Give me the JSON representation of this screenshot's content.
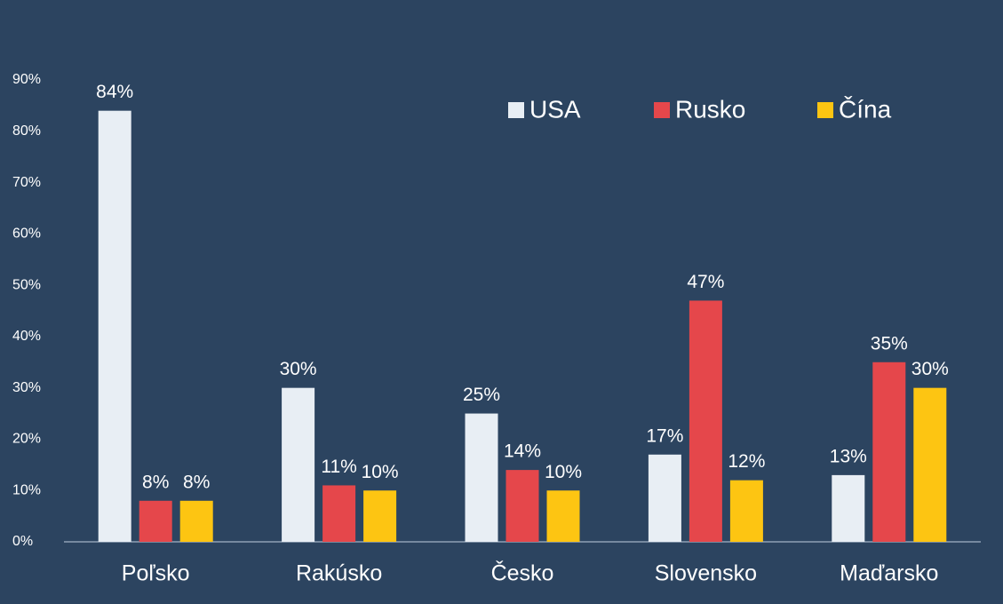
{
  "chart_data": {
    "type": "bar",
    "categories": [
      "Poľsko",
      "Rakúsko",
      "Česko",
      "Slovensko",
      "Maďarsko"
    ],
    "series": [
      {
        "name": "USA",
        "color": "#e8eef4",
        "values": [
          84,
          30,
          25,
          17,
          13
        ],
        "value_labels": [
          "84%",
          "30%",
          "25%",
          "17%",
          "13%"
        ]
      },
      {
        "name": "Rusko",
        "color": "#e5474b",
        "values": [
          8,
          11,
          14,
          47,
          35
        ],
        "value_labels": [
          "8%",
          "11%",
          "14%",
          "47%",
          "35%"
        ]
      },
      {
        "name": "Čína",
        "color": "#fdc512",
        "values": [
          8,
          10,
          10,
          12,
          30
        ],
        "value_labels": [
          "8%",
          "10%",
          "10%",
          "12%",
          "30%"
        ]
      }
    ],
    "ylim": [
      0,
      90
    ],
    "yticks": [
      {
        "value": 0,
        "label": "0%"
      },
      {
        "value": 10,
        "label": "10%"
      },
      {
        "value": 20,
        "label": "20%"
      },
      {
        "value": 30,
        "label": "30%"
      },
      {
        "value": 40,
        "label": "40%"
      },
      {
        "value": 50,
        "label": "50%"
      },
      {
        "value": 60,
        "label": "60%"
      },
      {
        "value": 70,
        "label": "70%"
      },
      {
        "value": 80,
        "label": "80%"
      },
      {
        "value": 90,
        "label": "90%"
      }
    ],
    "grid": false,
    "legend": "top-right"
  }
}
